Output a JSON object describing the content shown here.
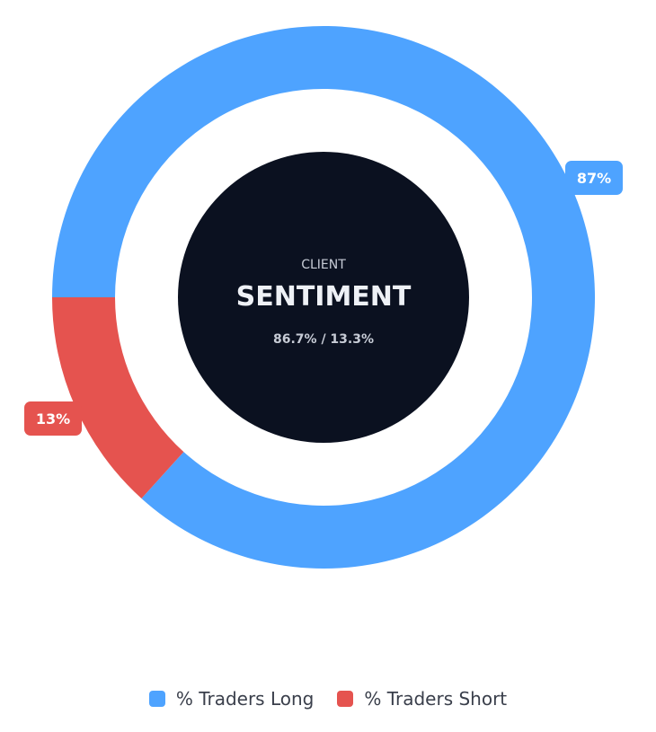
{
  "center": {
    "kicker": "CLIENT",
    "title": "SENTIMENT",
    "detail": "86.7% / 13.3%"
  },
  "colors": {
    "long": "#4ea3ff",
    "short": "#e5534f",
    "center_fill": "#0b1120",
    "center_kicker": "#c7ccd6",
    "center_title": "#eef1f6",
    "center_detail": "#c7ccd6"
  },
  "chart_data": {
    "type": "pie",
    "series": [
      {
        "name": "% Traders Long",
        "value": 86.7,
        "label": "87%",
        "color": "#4ea3ff"
      },
      {
        "name": "% Traders Short",
        "value": 13.3,
        "label": "13%",
        "color": "#e5534f"
      }
    ]
  },
  "legend": {
    "items": [
      {
        "label": "% Traders Long",
        "color": "#4ea3ff"
      },
      {
        "label": "% Traders Short",
        "color": "#e5534f"
      }
    ]
  }
}
